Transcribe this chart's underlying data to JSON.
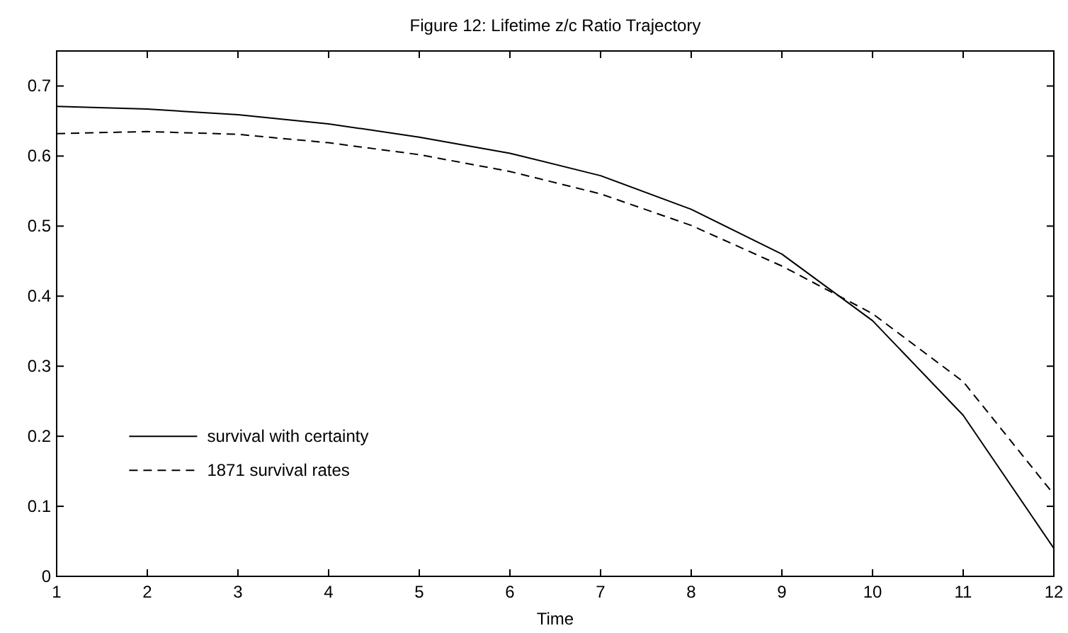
{
  "chart_data": {
    "type": "line",
    "title": "Figure 12: Lifetime z/c Ratio Trajectory",
    "xlabel": "Time",
    "x": [
      1,
      2,
      3,
      4,
      5,
      6,
      7,
      8,
      9,
      10,
      11,
      12
    ],
    "series": [
      {
        "name": "survival with certainty",
        "color": "#000000",
        "line_style": "solid",
        "values": [
          0.671,
          0.667,
          0.659,
          0.646,
          0.627,
          0.604,
          0.572,
          0.524,
          0.46,
          0.365,
          0.23,
          0.04
        ]
      },
      {
        "name": "1871 survival rates",
        "color": "#000000",
        "line_style": "dashed",
        "values": [
          0.632,
          0.635,
          0.631,
          0.619,
          0.602,
          0.578,
          0.546,
          0.501,
          0.443,
          0.375,
          0.278,
          0.117
        ]
      }
    ],
    "xlim": [
      1,
      12
    ],
    "xticks": [
      1,
      2,
      3,
      4,
      5,
      6,
      7,
      8,
      9,
      10,
      11,
      12
    ],
    "ylim": [
      0,
      0.75
    ],
    "yticks": [
      0,
      0.1,
      0.2,
      0.3,
      0.4,
      0.5,
      0.6,
      0.7
    ],
    "grid": false,
    "legend": "bottom left"
  }
}
